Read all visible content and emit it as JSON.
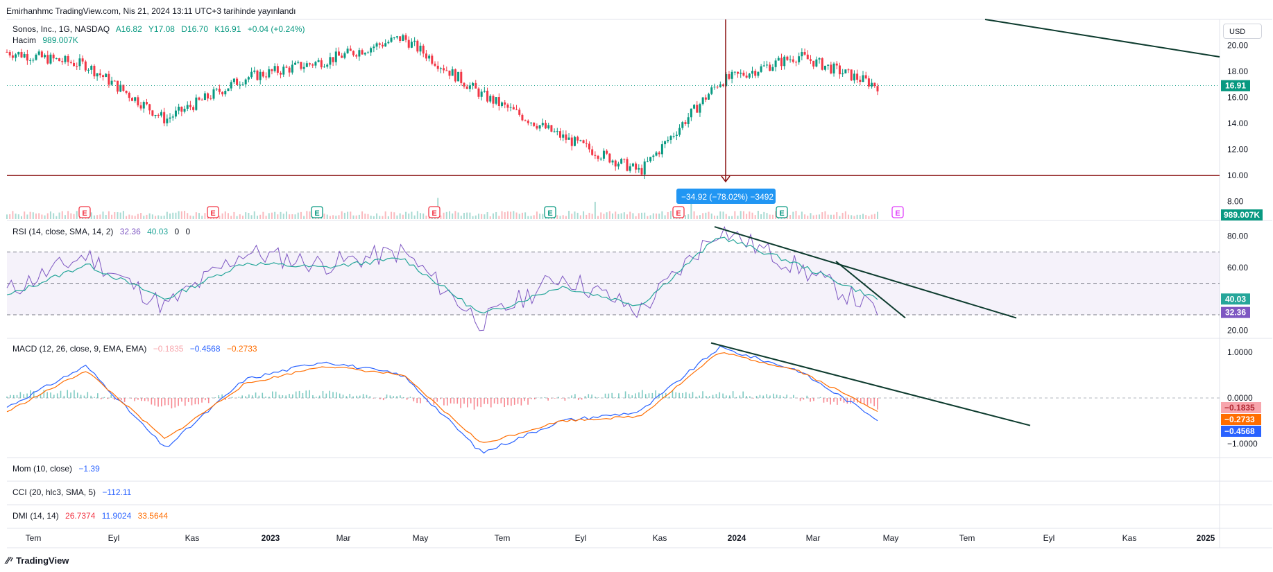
{
  "header": {
    "published": "Emirhanhmc TradingView.com, Nis 21, 2024 13:11 UTC+3 tarihinde yayınlandı"
  },
  "main_legend": {
    "symbol": "Sonos, Inc., 1G, NASDAQ",
    "open": "A16.82",
    "high": "Y17.08",
    "low": "D16.70",
    "close": "K16.91",
    "change": "+0.04 (+0.24%)",
    "volume_label": "Hacim",
    "volume_value": "989.007K"
  },
  "currency": "USD",
  "price_axis": {
    "ticks": [
      "20.00",
      "18.00",
      "16.00",
      "14.00",
      "12.00",
      "10.00",
      "8.00"
    ],
    "last": "16.91",
    "volume_last": "989.007K"
  },
  "measure_label": "−34.92 (−78.02%) −3492",
  "rsi": {
    "label": "RSI (14, close, SMA, 14, 2)",
    "v1": "32.36",
    "v2": "40.03",
    "v3": "0",
    "v4": "0",
    "ticks": [
      "80.00",
      "60.00",
      "20.00"
    ],
    "badge1": "40.03",
    "badge2": "32.36"
  },
  "macd": {
    "label": "MACD (12, 26, close, 9, EMA, EMA)",
    "hist": "−0.1835",
    "macd": "−0.4568",
    "signal": "−0.2733",
    "ticks": [
      "1.0000",
      "0.0000",
      "−1.0000"
    ],
    "badge_hist": "−0.1835",
    "badge_signal": "−0.2733",
    "badge_macd": "−0.4568"
  },
  "mom": {
    "label": "Mom (10, close)",
    "value": "−1.39"
  },
  "cci": {
    "label": "CCI (20, hlc3, SMA, 5)",
    "value": "−112.11"
  },
  "dmi": {
    "label": "DMI (14, 14)",
    "v1": "26.7374",
    "v2": "11.9024",
    "v3": "33.5644"
  },
  "time_axis": [
    "Tem",
    "Eyl",
    "Kas",
    "2023",
    "Mar",
    "May",
    "Tem",
    "Eyl",
    "Kas",
    "2024",
    "Mar",
    "May",
    "Tem",
    "Eyl",
    "Kas",
    "2025"
  ],
  "earnings_markers": [
    "E",
    "E",
    "E",
    "E",
    "E",
    "E",
    "E",
    "E"
  ],
  "footer": {
    "brand": "TradingView"
  },
  "colors": {
    "up": "#089981",
    "down": "#f23645",
    "rsi": "#7e57c2",
    "rsi_ma": "#26a69a",
    "macd": "#2962ff",
    "signal": "#ff6d00"
  },
  "chart_data": [
    {
      "type": "candlestick",
      "title": "Sonos, Inc., 1G, NASDAQ",
      "ylim": [
        7.5,
        22
      ],
      "x": [
        "2022-07",
        "2022-09",
        "2022-11",
        "2023-01",
        "2023-03",
        "2023-05",
        "2023-07",
        "2023-09",
        "2023-11",
        "2024-01",
        "2024-03",
        "2024-04"
      ],
      "close_approx": [
        19.5,
        18.5,
        14.3,
        17.5,
        18.8,
        20.6,
        16.2,
        13.0,
        10.3,
        17.2,
        19.2,
        16.91
      ],
      "horizontal_line": 10.0,
      "last": 16.91
    },
    {
      "type": "line",
      "title": "RSI (14, close, SMA, 14, 2)",
      "ylim": [
        15,
        90
      ],
      "levels": [
        70,
        50,
        30
      ],
      "series": [
        {
          "name": "RSI",
          "values": [
            45,
            68,
            35,
            70,
            62,
            70,
            25,
            55,
            32,
            85,
            60,
            32.36
          ]
        },
        {
          "name": "RSI MA",
          "values": [
            42,
            62,
            40,
            63,
            60,
            66,
            30,
            48,
            36,
            80,
            62,
            40.03
          ]
        }
      ]
    },
    {
      "type": "line",
      "title": "MACD (12, 26, close, 9, EMA, EMA)",
      "ylim": [
        -1.3,
        1.3
      ],
      "series": [
        {
          "name": "MACD",
          "values": [
            -0.2,
            0.7,
            -1.1,
            0.4,
            0.8,
            0.5,
            -1.2,
            -0.5,
            -0.3,
            1.1,
            0.6,
            -0.4568
          ]
        },
        {
          "name": "Signal",
          "values": [
            -0.3,
            0.6,
            -0.9,
            0.3,
            0.7,
            0.5,
            -1.0,
            -0.5,
            -0.4,
            1.0,
            0.6,
            -0.2733
          ]
        },
        {
          "name": "Histogram",
          "values": [
            0.1,
            0.1,
            -0.2,
            0.1,
            0.1,
            0.0,
            -0.2,
            0.0,
            0.1,
            0.1,
            0.0,
            -0.1835
          ]
        }
      ]
    }
  ]
}
